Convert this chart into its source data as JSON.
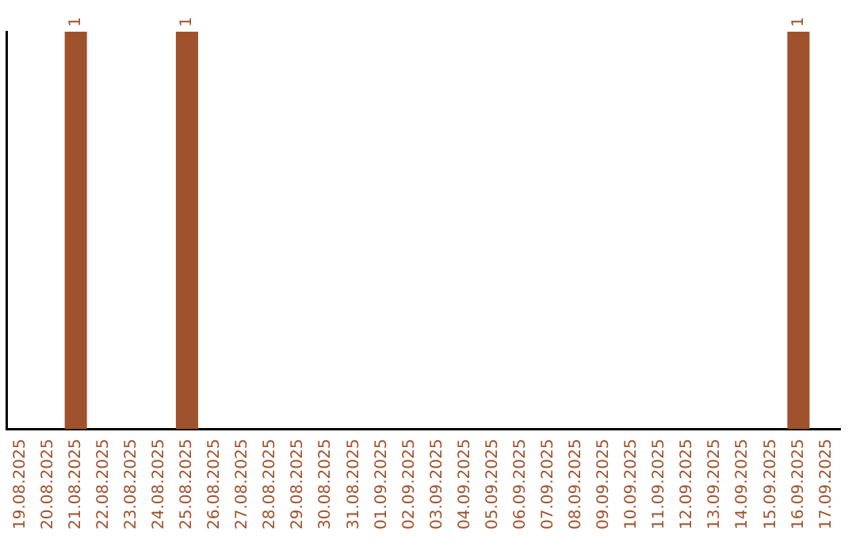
{
  "chart_data": {
    "type": "bar",
    "tick_labels": "x",
    "color": "#a0522d",
    "grid": false,
    "legend": false,
    "categories": [
      "19.08.2025",
      "20.08.2025",
      "21.08.2025",
      "22.08.2025",
      "23.08.2025",
      "24.08.2025",
      "25.08.2025",
      "26.08.2025",
      "27.08.2025",
      "28.08.2025",
      "29.08.2025",
      "30.08.2025",
      "31.08.2025",
      "01.09.2025",
      "02.09.2025",
      "03.09.2025",
      "04.09.2025",
      "05.09.2025",
      "06.09.2025",
      "07.09.2025",
      "08.09.2025",
      "09.09.2025",
      "10.09.2025",
      "11.09.2025",
      "12.09.2025",
      "13.09.2025",
      "14.09.2025",
      "15.09.2025",
      "16.09.2025",
      "17.09.2025"
    ],
    "values": [
      0,
      0,
      1,
      0,
      0,
      0,
      1,
      0,
      0,
      0,
      0,
      0,
      0,
      0,
      0,
      0,
      0,
      0,
      0,
      0,
      0,
      0,
      0,
      0,
      0,
      0,
      0,
      0,
      1,
      0
    ],
    "value_labels": [
      null,
      null,
      "1",
      null,
      null,
      null,
      "1",
      null,
      null,
      null,
      null,
      null,
      null,
      null,
      null,
      null,
      null,
      null,
      null,
      null,
      null,
      null,
      null,
      null,
      null,
      null,
      null,
      null,
      "1",
      null
    ]
  }
}
